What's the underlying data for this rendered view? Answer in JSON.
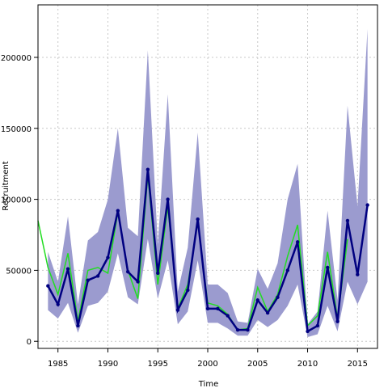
{
  "chart_data": {
    "type": "line",
    "title": "",
    "xlabel": "Time",
    "ylabel": "Recruitment",
    "xlim": [
      1983,
      2017
    ],
    "ylim": [
      -5000,
      237000
    ],
    "x_ticks": [
      1985,
      1990,
      1995,
      2000,
      2005,
      2010,
      2015
    ],
    "y_ticks": [
      0,
      50000,
      100000,
      150000,
      200000
    ],
    "x_tick_labels": [
      "1985",
      "1990",
      "1995",
      "2000",
      "2005",
      "2010",
      "2015"
    ],
    "y_tick_labels": [
      "0",
      "50000",
      "100000",
      "150000",
      "200000"
    ],
    "grid": true,
    "colors": {
      "band": "#9b9bcf",
      "estimate": "#000080",
      "observed": "#22dd22"
    },
    "series": [
      {
        "type": "band",
        "x": [
          1984,
          1985,
          1986,
          1987,
          1988,
          1989,
          1990,
          1991,
          1992,
          1993,
          1994,
          1995,
          1996,
          1997,
          1998,
          1999,
          2000,
          2001,
          2002,
          2003,
          2004,
          2005,
          2006,
          2007,
          2008,
          2009,
          2010,
          2011,
          2012,
          2013,
          2014,
          2015,
          2016
        ],
        "lower": [
          22000,
          16000,
          27000,
          6000,
          25000,
          27000,
          35000,
          62000,
          31000,
          26000,
          72000,
          30000,
          57000,
          12000,
          21000,
          57000,
          13000,
          13000,
          9000,
          4000,
          4000,
          15000,
          10000,
          15000,
          25000,
          40000,
          3000,
          5000,
          25000,
          7000,
          42000,
          26000,
          42000
        ],
        "upper": [
          63000,
          42000,
          88000,
          26000,
          71000,
          77000,
          100000,
          150000,
          80000,
          74000,
          205000,
          68000,
          174000,
          35000,
          66000,
          147000,
          40000,
          40000,
          34000,
          14000,
          13000,
          51000,
          37000,
          55000,
          100000,
          125000,
          12000,
          21000,
          92000,
          29000,
          166000,
          95000,
          220000
        ]
      },
      {
        "type": "line",
        "x": [
          1984,
          1985,
          1986,
          1987,
          1988,
          1989,
          1990,
          1991,
          1992,
          1993,
          1994,
          1995,
          1996,
          1997,
          1998,
          1999,
          2000,
          2001,
          2002,
          2003,
          2004,
          2005,
          2006,
          2007,
          2008,
          2009,
          2010,
          2011,
          2012,
          2013,
          2014,
          2015,
          2016
        ],
        "values": [
          39000,
          26000,
          51000,
          11000,
          43000,
          46000,
          59000,
          92000,
          49000,
          42000,
          121000,
          48000,
          100000,
          22000,
          36000,
          86000,
          23000,
          23000,
          18000,
          8000,
          8000,
          29000,
          20000,
          31000,
          50000,
          70000,
          7000,
          11000,
          52000,
          14000,
          85000,
          47000,
          96000
        ]
      },
      {
        "type": "line",
        "x": [
          1983,
          1984,
          1985,
          1986,
          1987,
          1988,
          1989,
          1990,
          1991,
          1992,
          1993,
          1994,
          1995,
          1996,
          1997,
          1998,
          1999,
          2000,
          2001,
          2002,
          2003,
          2004,
          2005,
          2006,
          2007,
          2008,
          2009,
          2010,
          2011,
          2012,
          2013,
          2014
        ],
        "values": [
          85000,
          52000,
          33000,
          62000,
          14000,
          50000,
          52000,
          48000,
          91000,
          50000,
          30000,
          117000,
          40000,
          95000,
          23000,
          40000,
          84000,
          27000,
          25000,
          19000,
          8000,
          9000,
          38000,
          21000,
          33000,
          60000,
          82000,
          11000,
          18000,
          63000,
          16000,
          72000
        ]
      }
    ]
  }
}
